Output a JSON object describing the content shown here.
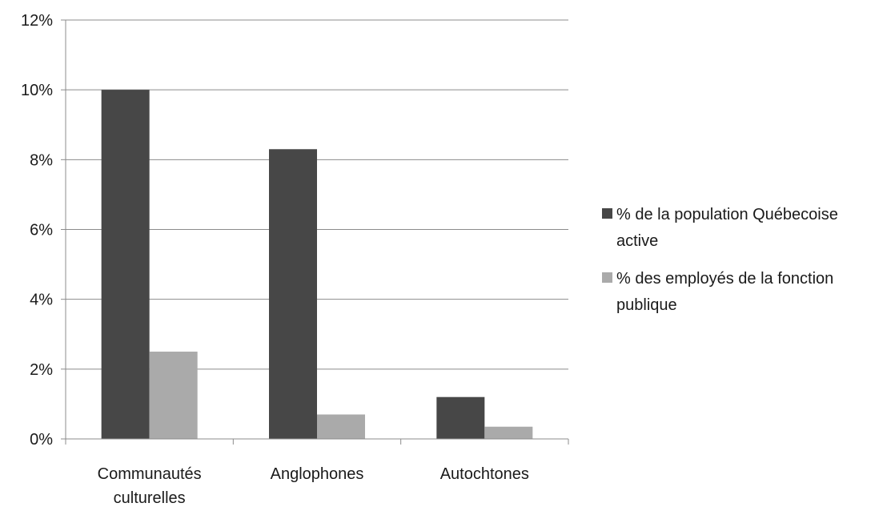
{
  "chart_data": {
    "type": "bar",
    "categories": [
      [
        "Communautés",
        "culturelles"
      ],
      [
        "Anglophones"
      ],
      [
        "Autochtones"
      ]
    ],
    "series": [
      {
        "name": "% de la population Québecoise active",
        "name_lines": [
          "% de la population Québecoise",
          "active"
        ],
        "color": "#474747",
        "values": [
          10.0,
          8.3,
          1.2
        ]
      },
      {
        "name": "% des employés de la fonction publique",
        "name_lines": [
          "% des employés de la fonction",
          "publique"
        ],
        "color": "#aaaaaa",
        "values": [
          2.5,
          0.7,
          0.35
        ]
      }
    ],
    "ylim": [
      0,
      12
    ],
    "yticks": [
      0,
      2,
      4,
      6,
      8,
      10,
      12
    ],
    "ytick_labels": [
      "0%",
      "2%",
      "4%",
      "6%",
      "8%",
      "10%",
      "12%"
    ],
    "grid": true,
    "legend_position": "right",
    "title": "",
    "xlabel": "",
    "ylabel": ""
  }
}
